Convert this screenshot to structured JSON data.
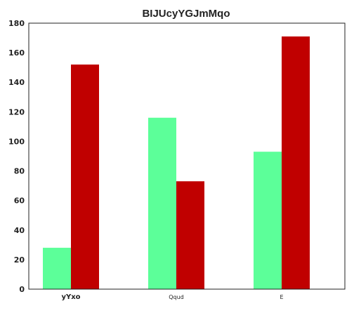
{
  "chart_data": {
    "type": "bar",
    "title": "BIJUcyYGJmMqo",
    "categories": [
      "yYxo",
      "Qqud",
      "E"
    ],
    "series": [
      {
        "values": [
          28,
          116,
          93
        ],
        "color": "#5cff99"
      },
      {
        "values": [
          152,
          73,
          171
        ],
        "color": "#c00000"
      }
    ],
    "ylim": [
      0,
      180
    ],
    "yticks": [
      0,
      20,
      40,
      60,
      80,
      100,
      120,
      140,
      160,
      180
    ],
    "grid": false,
    "legend": "none"
  }
}
